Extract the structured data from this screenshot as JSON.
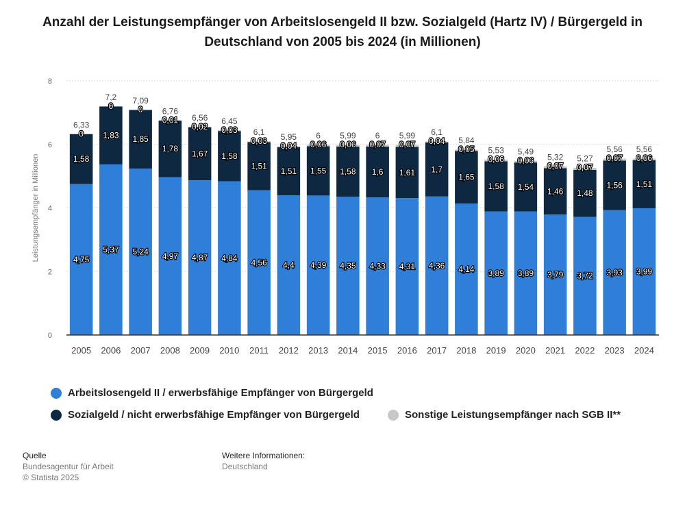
{
  "title": "Anzahl der Leistungsempfänger von Arbeitslosengeld II bzw. Sozialgeld (Hartz IV) / Bürgergeld in Deutschland von 2005 bis 2024 (in Millionen)",
  "colors": {
    "blue": "#2f7ed8",
    "navy": "#0e2841",
    "gray": "#c8c8c8",
    "grid": "#d8d8d8",
    "axis_text": "#666666"
  },
  "chart_data": {
    "type": "bar",
    "stacked": true,
    "categories": [
      "2005",
      "2006",
      "2007",
      "2008",
      "2009",
      "2010",
      "2011",
      "2012",
      "2013",
      "2014",
      "2015",
      "2016",
      "2017",
      "2018",
      "2019",
      "2020",
      "2021",
      "2022",
      "2023",
      "2024"
    ],
    "series": [
      {
        "name": "Arbeitslosengeld II / erwerbsfähige Empfänger von Bürgergeld",
        "values": [
          4.75,
          5.37,
          5.24,
          4.97,
          4.87,
          4.84,
          4.56,
          4.4,
          4.39,
          4.35,
          4.33,
          4.31,
          4.36,
          4.14,
          3.89,
          3.89,
          3.79,
          3.72,
          3.93,
          3.99
        ],
        "labels": [
          "4,75",
          "5,37",
          "5,24",
          "4,97",
          "4,87",
          "4,84",
          "4,56",
          "4,4",
          "4,39",
          "4,35",
          "4,33",
          "4,31",
          "4,36",
          "4,14",
          "3,89",
          "3,89",
          "3,79",
          "3,72",
          "3,93",
          "3,99"
        ]
      },
      {
        "name": "Sozialgeld / nicht erwerbsfähige Empfänger von Bürgergeld",
        "values": [
          1.58,
          1.83,
          1.85,
          1.78,
          1.67,
          1.58,
          1.51,
          1.51,
          1.55,
          1.58,
          1.6,
          1.61,
          1.7,
          1.65,
          1.58,
          1.54,
          1.46,
          1.48,
          1.56,
          1.51
        ],
        "labels": [
          "1,58",
          "1,83",
          "1,85",
          "1,78",
          "1,67",
          "1,58",
          "1,51",
          "1,51",
          "1,55",
          "1,58",
          "1,6",
          "1,61",
          "1,7",
          "1,65",
          "1,58",
          "1,54",
          "1,46",
          "1,48",
          "1,56",
          "1,51"
        ]
      },
      {
        "name": "Sonstige Leistungsempfänger nach SGB II**",
        "values": [
          0,
          0,
          0,
          0.01,
          0.02,
          0.03,
          0.03,
          0.04,
          0.06,
          0.06,
          0.07,
          0.07,
          0.04,
          0.05,
          0.06,
          0.06,
          0.07,
          0.07,
          0.07,
          0.06
        ],
        "labels": [
          "0",
          "0",
          "0",
          "0,01",
          "0,02",
          "0,03",
          "0,03",
          "0,04",
          "0,06",
          "0,06",
          "0,07",
          "0,07",
          "0,04",
          "0,05",
          "0,06",
          "0,06",
          "0,07",
          "0,07",
          "0,07",
          "0,06"
        ]
      }
    ],
    "totals": [
      "6,33",
      "7,2",
      "7,09",
      "6,76",
      "6,56",
      "6,45",
      "6,1",
      "5,95",
      "6",
      "5,99",
      "6",
      "5,99",
      "6,1",
      "5,84",
      "5,53",
      "5,49",
      "5,32",
      "5,27",
      "5,56",
      "5,56"
    ],
    "ylabel": "Leistungsempfänger in Millionen",
    "ylim": [
      0,
      8
    ],
    "yticks": [
      "0",
      "2",
      "4",
      "6",
      "8"
    ],
    "grid": true,
    "legend_position": "bottom"
  },
  "legend": [
    {
      "label": "Arbeitslosengeld II / erwerbsfähige Empfänger von Bürgergeld",
      "color": "#2f7ed8"
    },
    {
      "label": "Sozialgeld / nicht erwerbsfähige Empfänger von Bürgergeld",
      "color": "#0e2841"
    },
    {
      "label": "Sonstige Leistungsempfänger nach SGB II**",
      "color": "#c8c8c8"
    }
  ],
  "footer": {
    "source_heading": "Quelle",
    "source_line1": "Bundesagentur für Arbeit",
    "source_line2": "© Statista 2025",
    "info_heading": "Weitere Informationen:",
    "info_line1": "Deutschland"
  }
}
